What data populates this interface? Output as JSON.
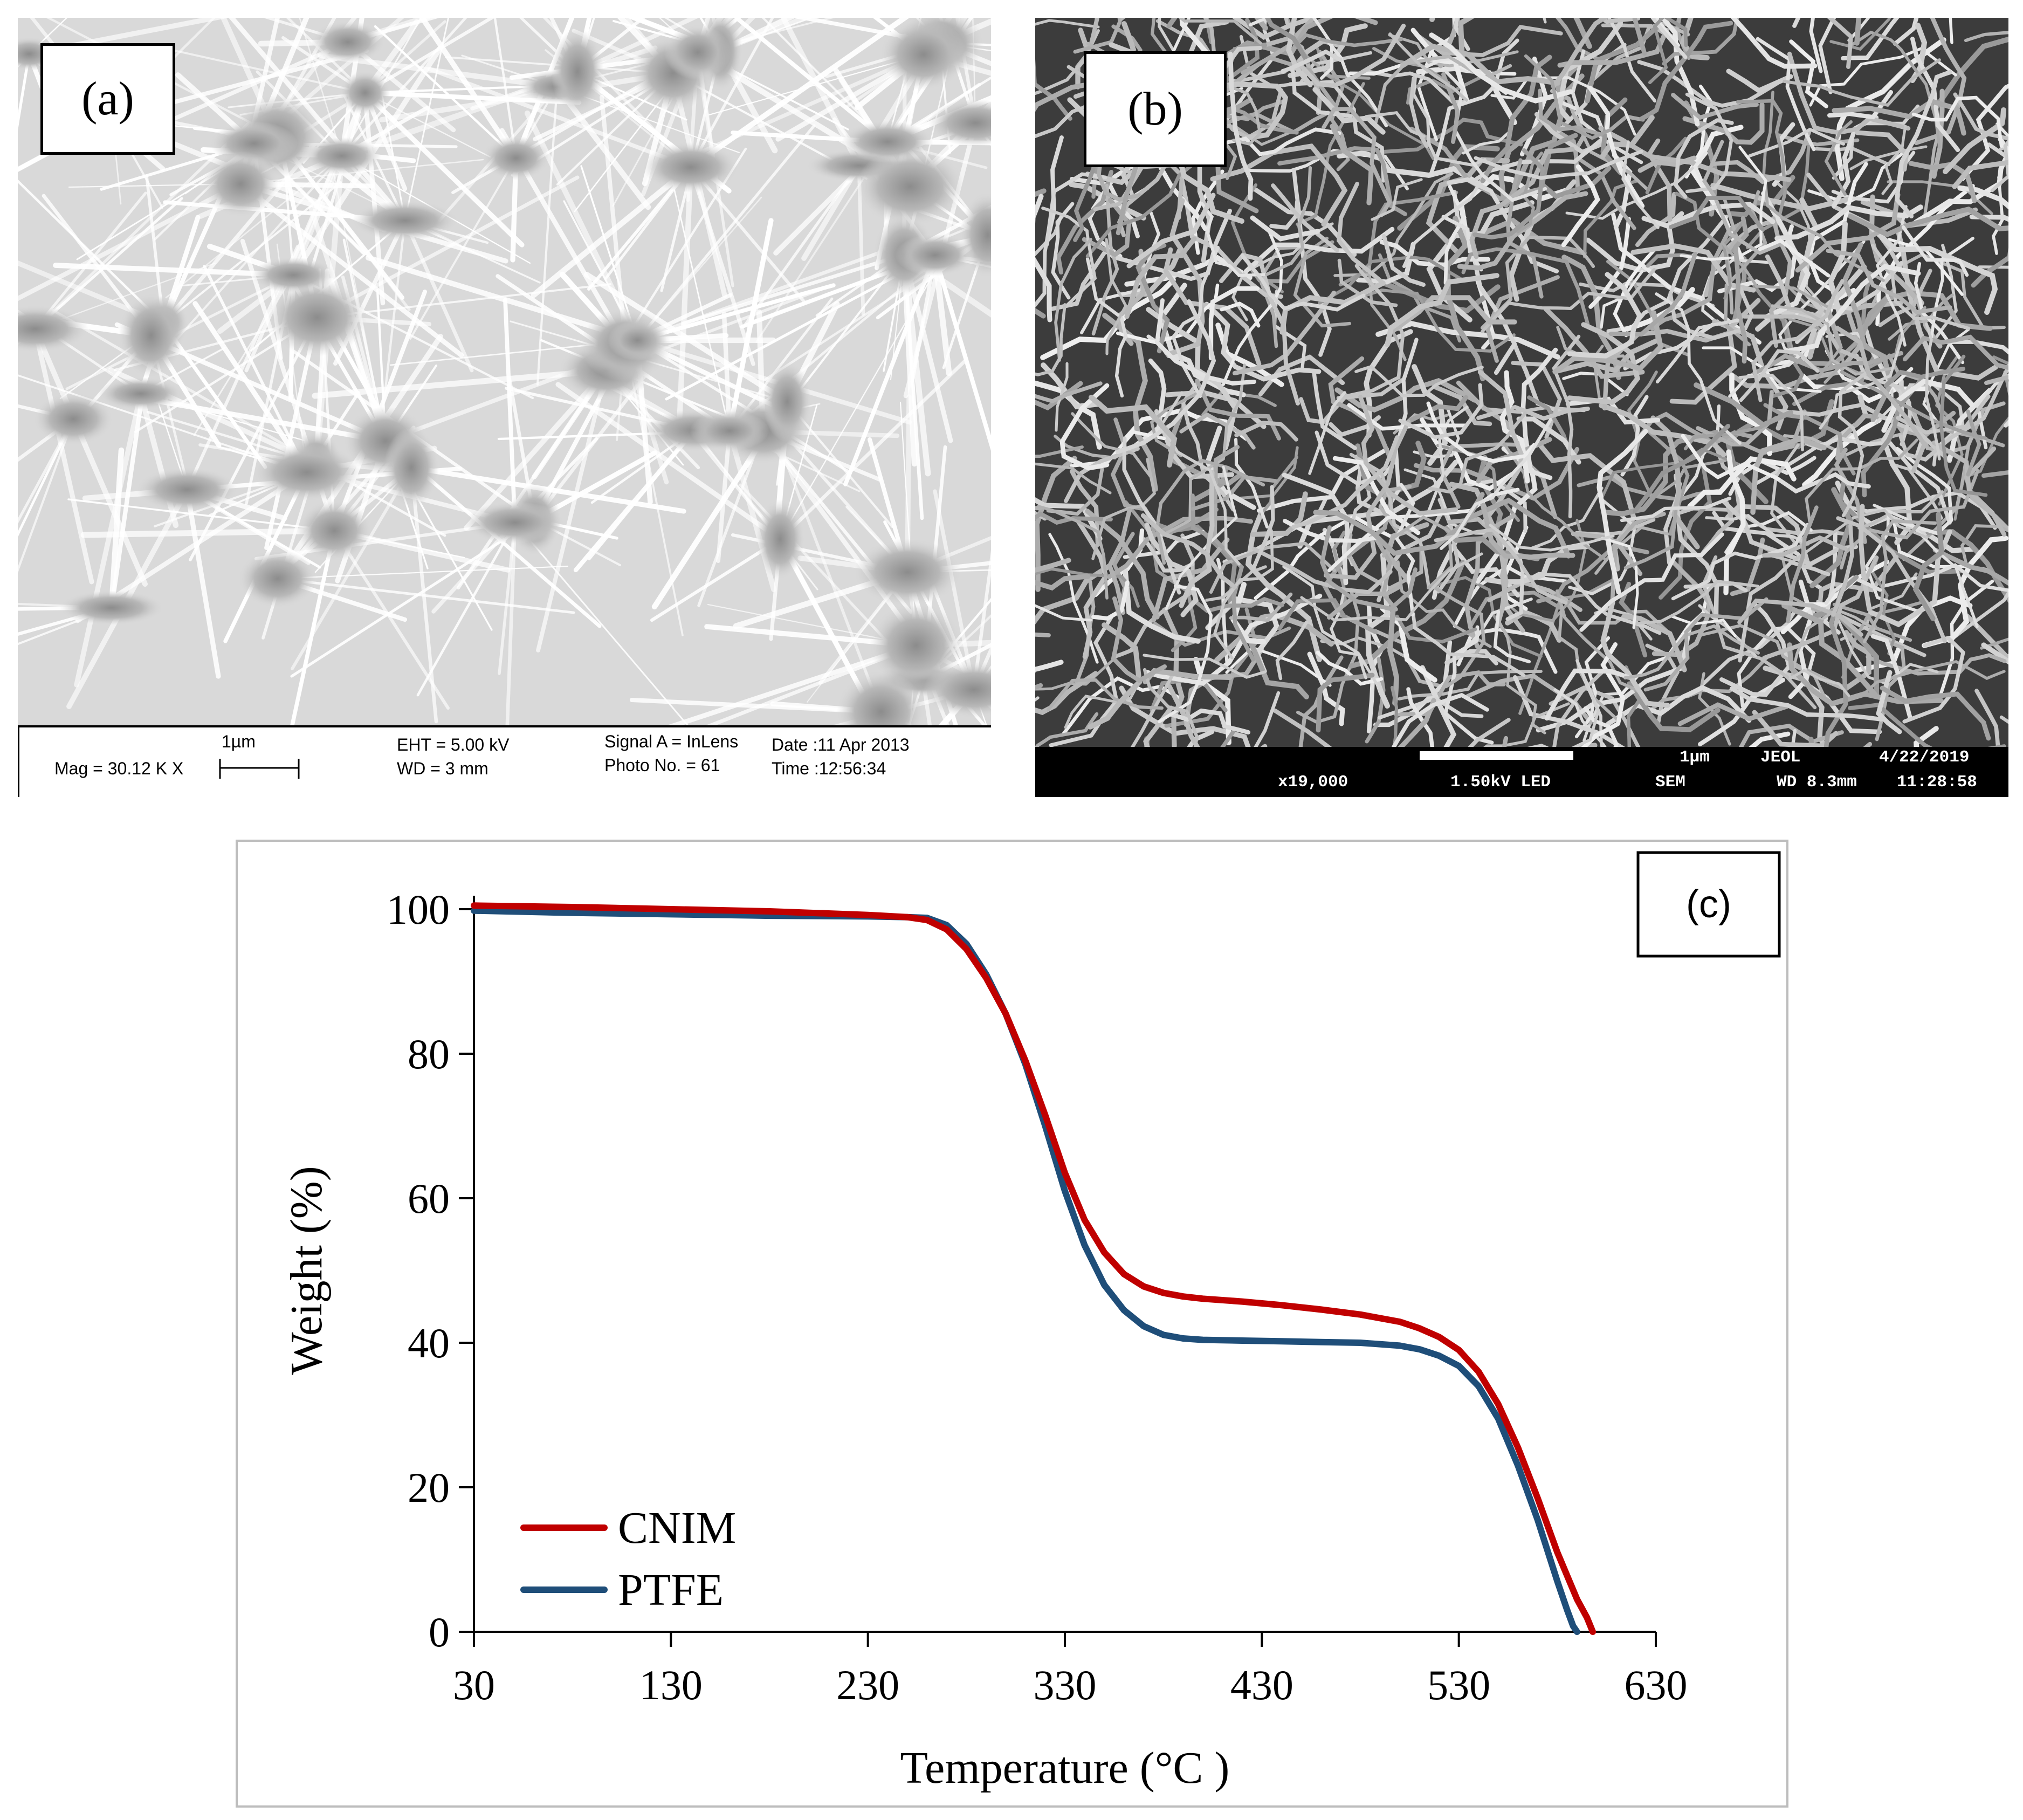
{
  "panel_a": {
    "label": "(a)",
    "info": {
      "scale": "1µm",
      "mag": "Mag =  30.12 K X",
      "eht": "EHT =  5.00 kV",
      "wd": "WD =    3 mm",
      "signal": "Signal A = InLens",
      "photo": "Photo No. = 61",
      "date": "Date :11 Apr 2013",
      "time": "Time :12:56:34"
    }
  },
  "panel_b": {
    "label": "(b)",
    "info": {
      "scale": "1µm",
      "brand": "JEOL",
      "date": "4/22/2019",
      "mag": "x19,000",
      "kv": "1.50kV LED",
      "mode": "SEM",
      "wd": "WD 8.3mm",
      "time": "11:28:58"
    }
  },
  "chart_data": {
    "type": "line",
    "label": "(c)",
    "xlabel": "Temperature (°C )",
    "ylabel": "Weight (%)",
    "xlim": [
      30,
      630
    ],
    "ylim": [
      0,
      100
    ],
    "xticks": [
      30,
      130,
      230,
      330,
      430,
      530,
      630
    ],
    "yticks": [
      0,
      20,
      40,
      60,
      80,
      100
    ],
    "legend_position": "bottom-left",
    "grid": false,
    "series": [
      {
        "name": "CNIM",
        "color": "#c00000",
        "x": [
          30,
          80,
          130,
          180,
          230,
          250,
          260,
          270,
          280,
          290,
          300,
          310,
          320,
          330,
          340,
          350,
          360,
          370,
          380,
          390,
          400,
          420,
          440,
          460,
          480,
          500,
          510,
          520,
          530,
          540,
          550,
          560,
          570,
          580,
          590,
          595,
          598
        ],
        "y": [
          100.5,
          100.3,
          100.0,
          99.7,
          99.2,
          98.9,
          98.5,
          97.2,
          94.5,
          90.5,
          85.5,
          79.0,
          71.5,
          63.5,
          57.0,
          52.5,
          49.5,
          47.8,
          46.9,
          46.4,
          46.1,
          45.7,
          45.2,
          44.6,
          43.9,
          42.9,
          42.0,
          40.8,
          39.0,
          36.0,
          31.5,
          25.5,
          18.5,
          11.0,
          4.5,
          2.0,
          0.0
        ]
      },
      {
        "name": "PTFE",
        "color": "#1f4e79",
        "x": [
          30,
          80,
          130,
          180,
          230,
          250,
          260,
          270,
          280,
          290,
          300,
          310,
          320,
          330,
          340,
          350,
          360,
          370,
          380,
          390,
          400,
          420,
          440,
          460,
          480,
          500,
          510,
          520,
          530,
          540,
          550,
          560,
          570,
          580,
          585,
          588,
          590
        ],
        "y": [
          99.8,
          99.5,
          99.3,
          99.1,
          99.0,
          98.9,
          98.8,
          97.8,
          95.2,
          91.0,
          85.5,
          78.5,
          70.0,
          61.0,
          53.5,
          48.0,
          44.5,
          42.3,
          41.1,
          40.6,
          40.4,
          40.3,
          40.2,
          40.1,
          40.0,
          39.6,
          39.1,
          38.2,
          36.8,
          34.0,
          29.5,
          23.0,
          15.5,
          7.0,
          3.0,
          0.8,
          0.0
        ]
      }
    ]
  }
}
